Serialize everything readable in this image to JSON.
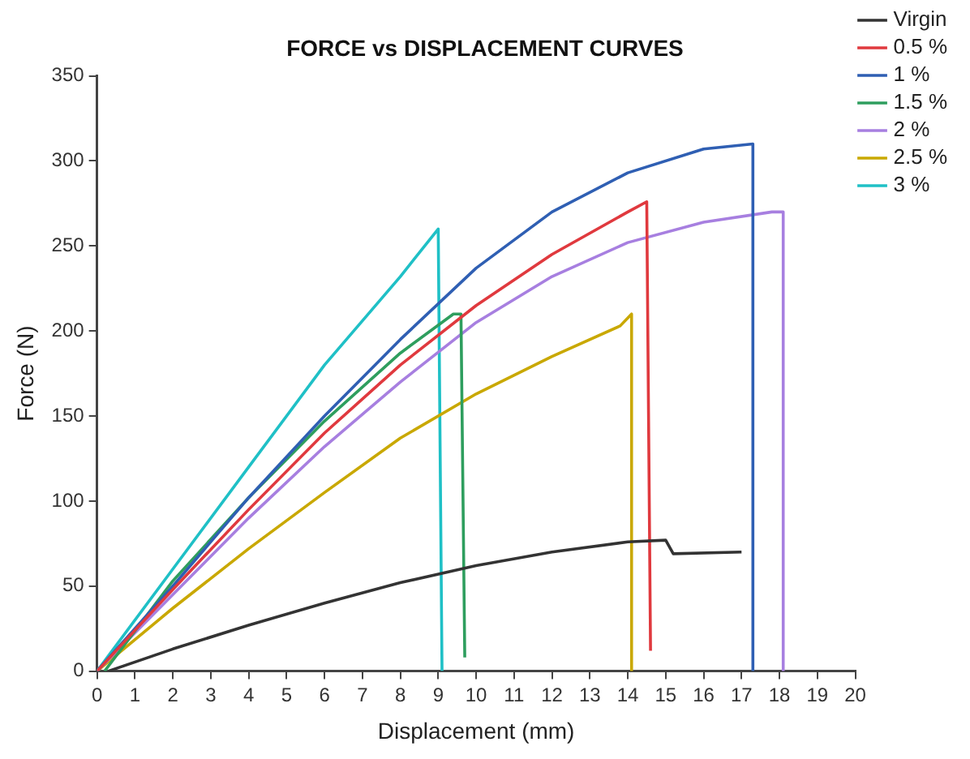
{
  "chart_data": {
    "type": "line",
    "title": "FORCE vs DISPLACEMENT CURVES",
    "xlabel": "Displacement (mm)",
    "ylabel": "Force (N)",
    "xlim": [
      0,
      20
    ],
    "xticks": [
      0,
      1,
      2,
      3,
      4,
      5,
      6,
      7,
      8,
      9,
      10,
      11,
      12,
      13,
      14,
      15,
      16,
      17,
      18,
      19,
      20
    ],
    "ylim": [
      0,
      350
    ],
    "yticks": [
      0,
      50,
      100,
      150,
      200,
      250,
      300,
      350
    ],
    "grid": false,
    "legend": "top right",
    "marker": "none",
    "line_style": "solid",
    "series": [
      {
        "name": "Virgin",
        "color": "#333333",
        "x": [
          0.3,
          2,
          4,
          6,
          8,
          10,
          12,
          14,
          15,
          15.2,
          17
        ],
        "values": [
          0,
          13,
          27,
          40,
          52,
          62,
          70,
          76,
          77,
          69,
          70
        ]
      },
      {
        "name": "0.5 %",
        "color": "#e0393e",
        "x": [
          0,
          2,
          4,
          6,
          8,
          10,
          12,
          14,
          14.5,
          14.6
        ],
        "values": [
          0,
          48,
          95,
          140,
          180,
          215,
          245,
          270,
          276,
          12
        ]
      },
      {
        "name": "1 %",
        "color": "#2f5fb3",
        "x": [
          0,
          2,
          4,
          6,
          8,
          10,
          12,
          14,
          16,
          17.3,
          17.3
        ],
        "values": [
          0,
          50,
          102,
          150,
          195,
          237,
          270,
          293,
          307,
          310,
          0
        ]
      },
      {
        "name": "1.5 %",
        "color": "#2e9e5e",
        "x": [
          0.2,
          2,
          4,
          6,
          8,
          9.4,
          9.6,
          9.7
        ],
        "values": [
          0,
          53,
          102,
          147,
          187,
          210,
          210,
          8
        ]
      },
      {
        "name": "2 %",
        "color": "#a77fe0",
        "x": [
          0,
          2,
          4,
          6,
          8,
          10,
          12,
          14,
          16,
          17.8,
          18.1,
          18.1
        ],
        "values": [
          0,
          45,
          90,
          132,
          170,
          205,
          232,
          252,
          264,
          270,
          270,
          0
        ]
      },
      {
        "name": "2.5 %",
        "color": "#c9a800",
        "x": [
          0,
          2,
          4,
          6,
          8,
          10,
          12,
          13.8,
          14.1,
          14.1
        ],
        "values": [
          0,
          37,
          72,
          105,
          137,
          163,
          185,
          203,
          210,
          0
        ]
      },
      {
        "name": "3 %",
        "color": "#1fc0c6",
        "x": [
          0,
          2,
          4,
          6,
          8,
          9,
          9.1
        ],
        "values": [
          0,
          60,
          120,
          180,
          232,
          260,
          0
        ]
      }
    ]
  }
}
